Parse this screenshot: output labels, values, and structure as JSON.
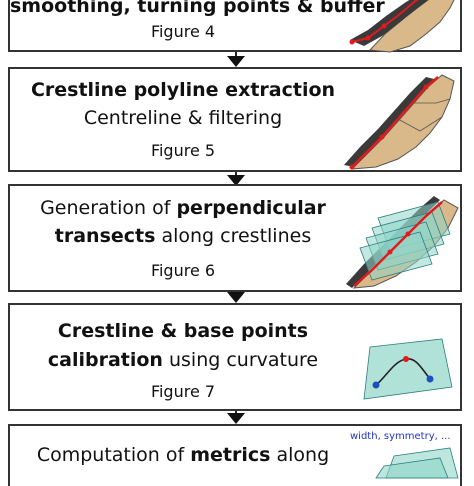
{
  "steps": [
    {
      "line1_bold": "smoothing, turning points & buffer",
      "figure": "Figure 4"
    },
    {
      "line1_bold": "Crestline polyline extraction",
      "line2": "Centreline & filtering",
      "figure": "Figure 5"
    },
    {
      "line1_pre": "Generation of ",
      "line1_bold": "perpendicular",
      "line2_bold": "transects",
      "line2_post": " along crestlines",
      "figure": "Figure 6"
    },
    {
      "line1_bold": "Crestline & base points",
      "line2_bold": "calibration",
      "line2_post": " using curvature",
      "figure": "Figure 7"
    },
    {
      "line1_pre": "Computation of ",
      "line1_bold": "metrics",
      "line1_post": " along",
      "side_label": "width, symmetry, ..."
    }
  ],
  "colors": {
    "dune": "#d9b889",
    "shadow": "#3a3a3a",
    "crestline": "#e31a1c",
    "plane": "#8fd6c8",
    "curve": "#222222",
    "base_point": "#1f4fbf",
    "accent_text": "#2233cc"
  }
}
